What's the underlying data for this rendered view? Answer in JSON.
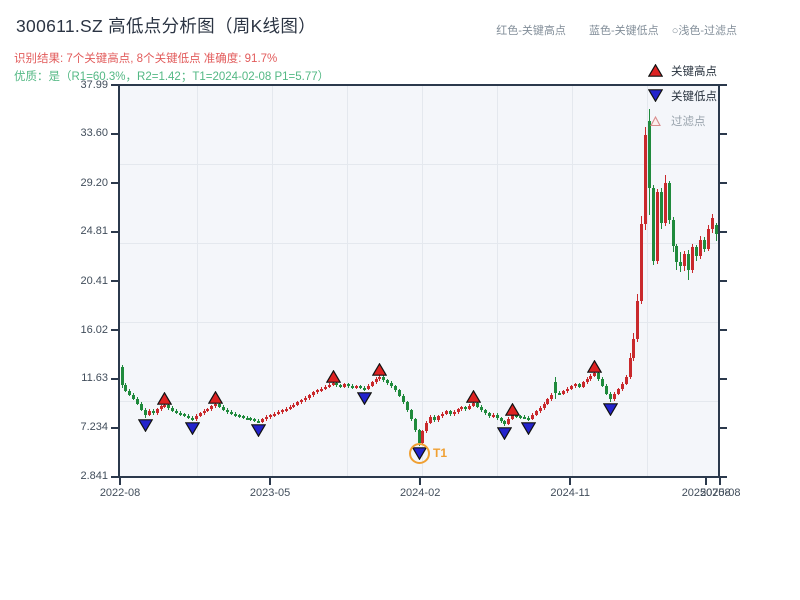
{
  "header": {
    "title": "300611.SZ 高低点分析图（周K线图）",
    "result_line": "识别结果: 7个关键高点, 8个关键低点  准确度: 91.7%",
    "quality_line": "优质：是（R1=60.3%，R2=1.42；T1=2024-02-08 P1=5.77）",
    "hint_high": "红色-关键高点",
    "hint_low": "蓝色-关键低点",
    "hint_filtered": "○浅色-过滤点"
  },
  "legend": {
    "items": [
      {
        "label": "关键高点",
        "type": "key-high"
      },
      {
        "label": "关键低点",
        "type": "key-low"
      },
      {
        "label": "过滤点",
        "type": "filtered"
      }
    ]
  },
  "chart_data": {
    "type": "candlestick",
    "title": "300611.SZ 高低点分析图（周K线图）",
    "symbol": "300611.SZ",
    "timeframe": "weekly",
    "grid": "on",
    "y_ticks": [
      {
        "label": "37.99",
        "value": 37.99
      },
      {
        "label": "33.60",
        "value": 33.6
      },
      {
        "label": "29.20",
        "value": 29.2
      },
      {
        "label": "24.81",
        "value": 24.81
      },
      {
        "label": "20.41",
        "value": 20.41
      },
      {
        "label": "16.02",
        "value": 16.02
      },
      {
        "label": "11.63",
        "value": 11.63
      },
      {
        "label": "7.234",
        "value": 7.234
      },
      {
        "label": "2.841",
        "value": 2.841
      }
    ],
    "x_ticks": [
      {
        "label": "2022-08",
        "week": 0
      },
      {
        "label": "2023-05",
        "week": 38.4
      },
      {
        "label": "2024-02",
        "week": 76.8
      },
      {
        "label": "2024-11",
        "week": 115.2
      },
      {
        "label": "2025-08",
        "week": 153.6
      },
      {
        "label": "20250708",
        "week": 150
      }
    ],
    "first_open": 12.9,
    "default_wick": 0.14,
    "closes": [
      11.3,
      10.75,
      10.4,
      10.05,
      9.6,
      9.05,
      8.6,
      8.95,
      8.75,
      9.1,
      9.35,
      9.5,
      9.2,
      8.95,
      8.8,
      8.65,
      8.5,
      8.35,
      8.2,
      8.5,
      8.75,
      8.95,
      9.1,
      9.35,
      9.55,
      9.3,
      9.05,
      8.85,
      8.7,
      8.55,
      8.45,
      8.35,
      8.28,
      8.18,
      8.08,
      7.98,
      8.2,
      8.4,
      8.55,
      8.7,
      8.85,
      9.0,
      9.15,
      9.3,
      9.5,
      9.7,
      9.9,
      10.1,
      10.35,
      10.6,
      10.8,
      10.95,
      11.1,
      11.3,
      11.45,
      11.25,
      11.1,
      11.32,
      11.18,
      11.05,
      11.15,
      11.02,
      10.95,
      11.2,
      11.5,
      11.8,
      12.0,
      11.7,
      11.45,
      11.15,
      10.8,
      10.3,
      9.7,
      9.0,
      8.2,
      7.2,
      6.1,
      7.1,
      7.9,
      8.4,
      8.1,
      8.45,
      8.7,
      8.9,
      8.65,
      8.85,
      9.1,
      9.28,
      9.12,
      9.42,
      9.62,
      9.32,
      9.02,
      8.72,
      8.45,
      8.6,
      8.3,
      8.0,
      7.8,
      8.25,
      8.58,
      8.45,
      8.4,
      8.32,
      8.25,
      8.6,
      8.9,
      9.2,
      9.6,
      10.0,
      10.4,
      10.55,
      10.5,
      10.7,
      10.95,
      11.15,
      11.35,
      11.1,
      11.5,
      11.8,
      12.1,
      12.3,
      11.8,
      11.2,
      10.5,
      10.0,
      10.5,
      10.9,
      11.4,
      12.0,
      13.7,
      15.4,
      18.8,
      25.7,
      33.7,
      28.9,
      22.4,
      28.6,
      25.8,
      29.4,
      26.1,
      23.7,
      22.3,
      21.9,
      23.0,
      21.6,
      23.6,
      22.8,
      24.3,
      23.5,
      25.3,
      26.2,
      24.8
    ],
    "overrides": {
      "0": [
        12.9,
        13.05,
        11.0,
        11.3
      ],
      "111": [
        11.5,
        11.95,
        10.05,
        10.55
      ],
      "130": [
        12.0,
        14.1,
        11.8,
        13.7
      ],
      "131": [
        13.7,
        15.9,
        13.4,
        15.4
      ],
      "132": [
        15.4,
        19.4,
        15.1,
        18.8
      ],
      "133": [
        18.8,
        26.4,
        18.5,
        25.7
      ],
      "134": [
        25.7,
        34.4,
        25.2,
        33.7
      ],
      "135": [
        34.9,
        35.99,
        26.5,
        28.9
      ],
      "136": [
        28.9,
        29.2,
        22.0,
        22.4
      ],
      "137": [
        22.4,
        28.8,
        22.1,
        28.6
      ],
      "138": [
        28.6,
        28.9,
        25.3,
        25.8
      ],
      "139": [
        25.8,
        30.1,
        25.5,
        29.4
      ],
      "140": [
        29.4,
        29.6,
        25.7,
        26.1
      ],
      "141": [
        26.1,
        26.3,
        23.2,
        23.7
      ],
      "142": [
        23.7,
        23.9,
        21.6,
        22.3
      ],
      "143": [
        22.3,
        23.2,
        21.4,
        21.9
      ],
      "144": [
        21.9,
        23.3,
        21.5,
        23.0
      ],
      "145": [
        23.0,
        23.4,
        20.7,
        21.6
      ],
      "146": [
        21.6,
        23.9,
        21.3,
        23.6
      ],
      "147": [
        23.6,
        23.8,
        22.4,
        22.8
      ],
      "148": [
        22.8,
        24.6,
        22.6,
        24.3
      ],
      "149": [
        24.3,
        24.5,
        23.2,
        23.5
      ],
      "150": [
        23.5,
        25.6,
        23.3,
        25.3
      ],
      "151": [
        25.3,
        26.6,
        24.9,
        26.2
      ],
      "152": [
        25.6,
        25.8,
        24.2,
        24.8
      ]
    },
    "markers": {
      "key_highs": [
        {
          "week": 11,
          "price": 9.75
        },
        {
          "week": 24,
          "price": 9.8
        },
        {
          "week": 54,
          "price": 11.72
        },
        {
          "week": 66,
          "price": 12.3
        },
        {
          "week": 90,
          "price": 9.95
        },
        {
          "week": 100,
          "price": 8.8
        },
        {
          "week": 121,
          "price": 12.6
        }
      ],
      "key_lows": [
        {
          "week": 6,
          "price": 8.35
        },
        {
          "week": 18,
          "price": 8.02
        },
        {
          "week": 35,
          "price": 7.82
        },
        {
          "week": 62,
          "price": 10.76
        },
        {
          "week": 76,
          "price": 5.77
        },
        {
          "week": 98,
          "price": 7.6
        },
        {
          "week": 104,
          "price": 8.08
        },
        {
          "week": 125,
          "price": 9.78
        }
      ]
    },
    "t1_annotation": {
      "week": 76,
      "price": 5.77,
      "label": "T1"
    },
    "colors": {
      "up_candle": "#c9292c",
      "down_candle": "#1f8a3c",
      "high_marker": "#dd2222",
      "low_marker": "#2323cc",
      "marker_outline": "#111111",
      "t1_orange": "#f0a032",
      "plot_bg": "#f4f6fa",
      "grid": "#e4e8ee",
      "spine": "#2b394c",
      "filtered_fill": "#fdeeee",
      "filtered_stroke": "#d98c8c"
    }
  }
}
